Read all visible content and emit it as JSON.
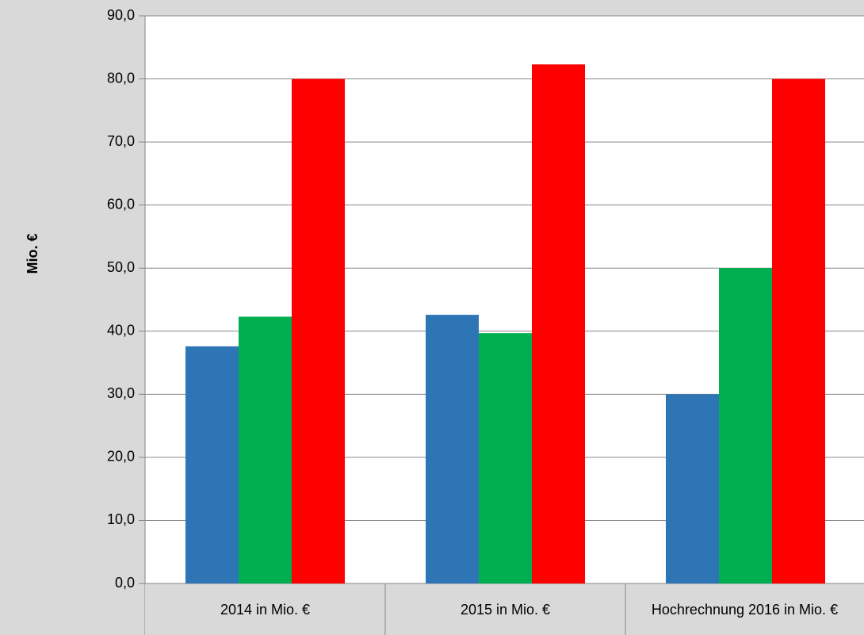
{
  "chart_data": {
    "type": "bar",
    "y_label": "Mio. €",
    "categories": [
      "2014 in Mio. €",
      "2015 in Mio. €",
      "Hochrechnung 2016 in Mio. €"
    ],
    "series": [
      {
        "color": "#2e75b6",
        "values": [
          37.6,
          42.6,
          30.0
        ]
      },
      {
        "color": "#00b050",
        "values": [
          42.3,
          39.7,
          50.0
        ]
      },
      {
        "color": "#ff0000",
        "values": [
          80.0,
          82.3,
          80.0
        ]
      }
    ],
    "ylim": [
      0,
      90
    ],
    "yticks": [
      {
        "value": 0,
        "label": "0,0"
      },
      {
        "value": 10,
        "label": "10,0"
      },
      {
        "value": 20,
        "label": "20,0"
      },
      {
        "value": 30,
        "label": "30,0"
      },
      {
        "value": 40,
        "label": "40,0"
      },
      {
        "value": 50,
        "label": "50,0"
      },
      {
        "value": 60,
        "label": "60,0"
      },
      {
        "value": 70,
        "label": "70,0"
      },
      {
        "value": 80,
        "label": "80,0"
      },
      {
        "value": 90,
        "label": "90,0"
      }
    ],
    "grid": true
  }
}
